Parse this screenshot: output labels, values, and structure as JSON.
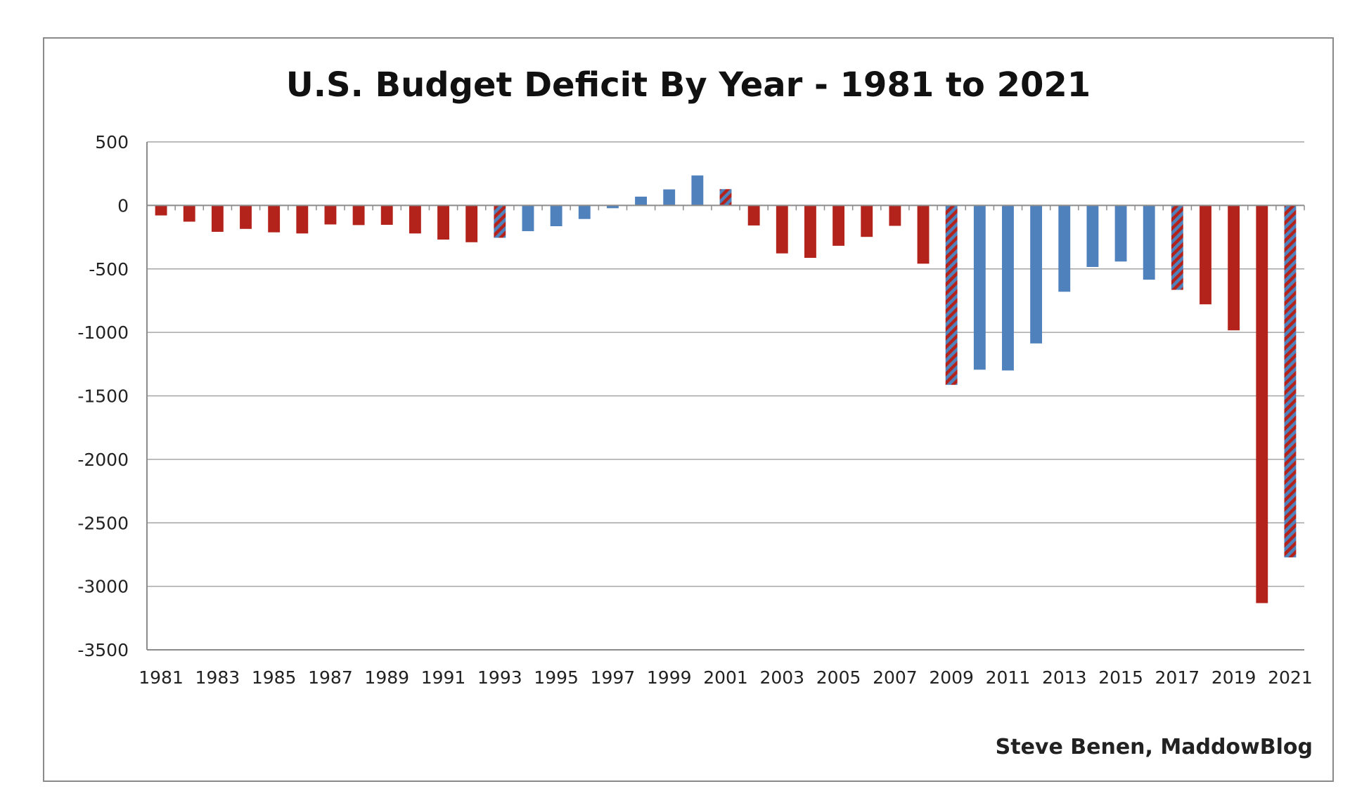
{
  "colors": {
    "red": "#b3231c",
    "blue": "#4f81bd",
    "grid": "#a6a6a6",
    "axis": "#8c8c8c"
  },
  "credit": "Steve Benen, MaddowBlog",
  "chart_data": {
    "type": "bar",
    "title": "U.S. Budget Deficit By Year - 1981 to 2021",
    "xlabel": "",
    "ylabel": "",
    "ylim": [
      -3500,
      500
    ],
    "yticks": [
      "500",
      "0",
      "-500",
      "-1000",
      "-1500",
      "-2000",
      "-2500",
      "-3000",
      "-3500"
    ],
    "ytick_values": [
      500,
      0,
      -500,
      -1000,
      -1500,
      -2000,
      -2500,
      -3000,
      -3500
    ],
    "categories": [
      "1981",
      "1982",
      "1983",
      "1984",
      "1985",
      "1986",
      "1987",
      "1988",
      "1989",
      "1990",
      "1991",
      "1992",
      "1993",
      "1994",
      "1995",
      "1996",
      "1997",
      "1998",
      "1999",
      "2000",
      "2001",
      "2002",
      "2003",
      "2004",
      "2005",
      "2006",
      "2007",
      "2008",
      "2009",
      "2010",
      "2011",
      "2012",
      "2013",
      "2014",
      "2015",
      "2016",
      "2017",
      "2018",
      "2019",
      "2020",
      "2021"
    ],
    "xtick_labels": [
      "1981",
      "1983",
      "1985",
      "1987",
      "1989",
      "1991",
      "1993",
      "1995",
      "1997",
      "1999",
      "2001",
      "2003",
      "2005",
      "2007",
      "2009",
      "2011",
      "2013",
      "2015",
      "2017",
      "2019",
      "2021"
    ],
    "values": [
      -79,
      -128,
      -208,
      -185,
      -212,
      -221,
      -150,
      -155,
      -153,
      -221,
      -269,
      -290,
      -255,
      -203,
      -164,
      -107,
      -22,
      69,
      126,
      236,
      128,
      -158,
      -378,
      -413,
      -318,
      -248,
      -161,
      -459,
      -1413,
      -1294,
      -1300,
      -1087,
      -680,
      -485,
      -442,
      -585,
      -665,
      -779,
      -984,
      -3132,
      -2772
    ],
    "bar_styles": [
      "red",
      "red",
      "red",
      "red",
      "red",
      "red",
      "red",
      "red",
      "red",
      "red",
      "red",
      "red",
      "striped",
      "blue",
      "blue",
      "blue",
      "blue",
      "blue",
      "blue",
      "blue",
      "striped",
      "red",
      "red",
      "red",
      "red",
      "red",
      "red",
      "red",
      "striped",
      "blue",
      "blue",
      "blue",
      "blue",
      "blue",
      "blue",
      "blue",
      "striped",
      "red",
      "red",
      "red",
      "striped"
    ],
    "grid": true,
    "legend": "none"
  }
}
